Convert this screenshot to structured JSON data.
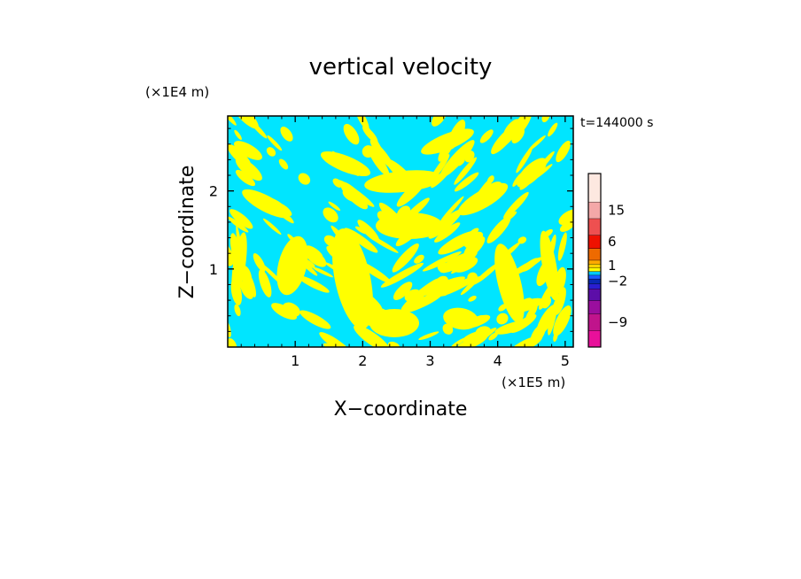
{
  "chart_data": {
    "type": "heatmap",
    "title": "vertical velocity",
    "xlabel": "X−coordinate",
    "ylabel": "Z−coordinate",
    "x_multiplier_label": "(×1E5 m)",
    "y_multiplier_label": "(×1E4 m)",
    "time_label": "t=144000 s",
    "xlim": [
      0,
      5.12
    ],
    "ylim": [
      0,
      2.96
    ],
    "xticks": [
      1,
      2,
      3,
      4,
      5
    ],
    "yticks": [
      1,
      2
    ],
    "xtick_labels": [
      "1",
      "2",
      "3",
      "4",
      "5"
    ],
    "ytick_labels": [
      "1",
      "2"
    ],
    "field_colors": {
      "positive": "#ffff00",
      "negative": "#00e5ff"
    },
    "colorbar": {
      "tick_labels": [
        "15",
        "6",
        "1",
        "−2",
        "−9"
      ],
      "tick_values": [
        15,
        6,
        1,
        -2,
        -9
      ],
      "bands": [
        {
          "color": "#e8109a",
          "value": -12
        },
        {
          "color": "#c0148c",
          "value": -9
        },
        {
          "color": "#9a0e9e",
          "value": -6
        },
        {
          "color": "#5c0ea8",
          "value": -4
        },
        {
          "color": "#2a1ed0",
          "value": -3
        },
        {
          "color": "#0a28b4",
          "value": -2
        },
        {
          "color": "#1a5cff",
          "value": -1
        },
        {
          "color": "#00c8ff",
          "value": -0.5
        },
        {
          "color": "#ffff00",
          "value": 0.5
        },
        {
          "color": "#ffd400",
          "value": 1
        },
        {
          "color": "#ffaa00",
          "value": 2
        },
        {
          "color": "#ee6a00",
          "value": 4
        },
        {
          "color": "#ee1100",
          "value": 6
        },
        {
          "color": "#ee5050",
          "value": 10
        },
        {
          "color": "#f4a8a8",
          "value": 15
        },
        {
          "color": "#fde8e0",
          "value": 20
        }
      ]
    }
  }
}
